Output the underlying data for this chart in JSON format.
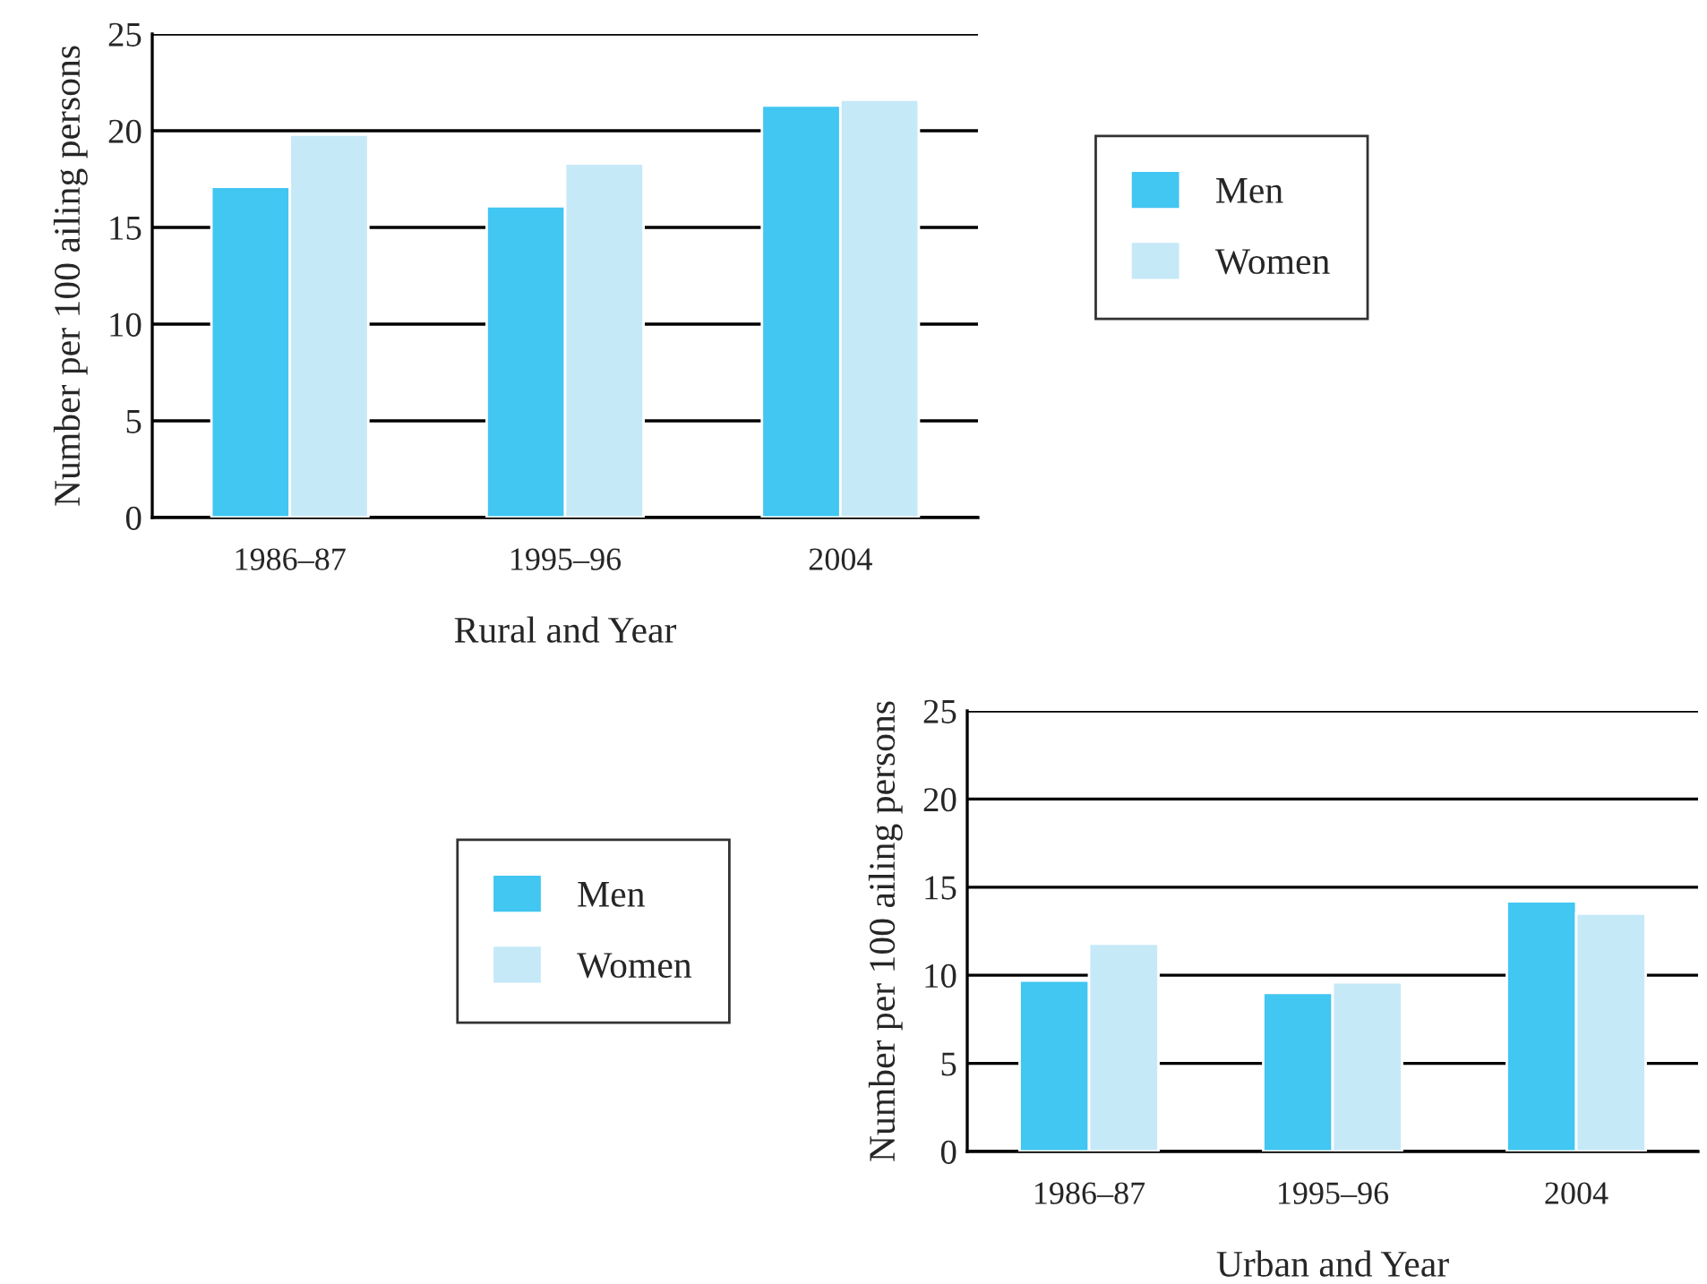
{
  "chart_data": [
    {
      "type": "bar",
      "categories": [
        "1986–87",
        "1995–96",
        "2004"
      ],
      "xlabel": "Rural and Year",
      "ylabel": "Number per 100 ailing persons",
      "ylim": [
        0,
        25
      ],
      "yticks": [
        0,
        5,
        10,
        15,
        20,
        25
      ],
      "grid": "y",
      "legend": "right",
      "series": [
        {
          "name": "Men",
          "color": "#42c6f2",
          "values": [
            17.1,
            16.1,
            21.3
          ]
        },
        {
          "name": "Women",
          "color": "#c6e9f8",
          "values": [
            19.8,
            18.3,
            21.6
          ]
        }
      ]
    },
    {
      "type": "bar",
      "categories": [
        "1986–87",
        "1995–96",
        "2004"
      ],
      "xlabel": "Urban and Year",
      "ylabel": "Number per 100 ailing persons",
      "ylim": [
        0,
        25
      ],
      "yticks": [
        0,
        5,
        10,
        15,
        20,
        25
      ],
      "grid": "y",
      "legend": "left",
      "series": [
        {
          "name": "Men",
          "color": "#42c6f2",
          "values": [
            9.7,
            9.0,
            14.2
          ]
        },
        {
          "name": "Women",
          "color": "#c6e9f8",
          "values": [
            11.8,
            9.6,
            13.5
          ]
        }
      ]
    }
  ]
}
